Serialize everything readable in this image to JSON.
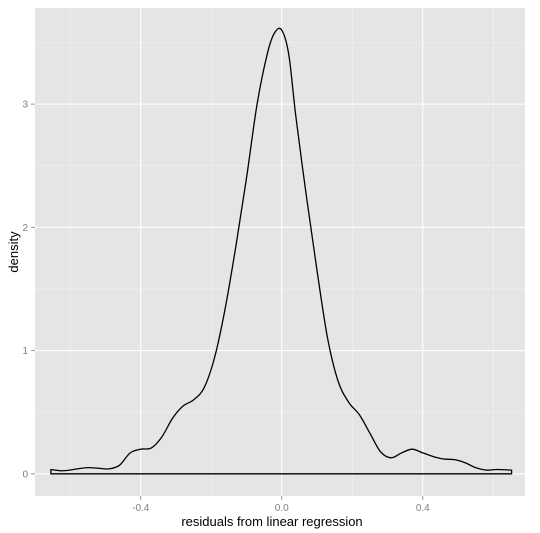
{
  "chart_data": {
    "type": "area",
    "style": "ggplot2 density plot (outlined, unfilled)",
    "xlabel": "residuals from linear regression",
    "ylabel": "density",
    "xlim": [
      -0.7,
      0.69
    ],
    "ylim": [
      -0.18,
      3.78
    ],
    "x_ticks": [
      -0.4,
      0.0,
      0.4
    ],
    "x_tick_labels": [
      "-0.4",
      "0.0",
      "0.4"
    ],
    "y_ticks": [
      0,
      1,
      2,
      3
    ],
    "y_tick_labels": [
      "0",
      "1",
      "2",
      "3"
    ],
    "grid": true,
    "panel_background": "#e5e5e5",
    "grid_color": "#ffffff",
    "line_color": "#000000",
    "series": [
      {
        "x": [
          -0.655,
          -0.62,
          -0.58,
          -0.55,
          -0.52,
          -0.49,
          -0.46,
          -0.43,
          -0.4,
          -0.37,
          -0.34,
          -0.31,
          -0.28,
          -0.25,
          -0.22,
          -0.19,
          -0.16,
          -0.13,
          -0.1,
          -0.07,
          -0.04,
          -0.02,
          0.0,
          0.02,
          0.04,
          0.07,
          0.1,
          0.13,
          0.16,
          0.19,
          0.22,
          0.25,
          0.28,
          0.31,
          0.34,
          0.37,
          0.4,
          0.43,
          0.46,
          0.49,
          0.52,
          0.55,
          0.58,
          0.61,
          0.652
        ],
        "y": [
          0.035,
          0.025,
          0.04,
          0.05,
          0.045,
          0.04,
          0.07,
          0.17,
          0.2,
          0.21,
          0.3,
          0.45,
          0.55,
          0.6,
          0.7,
          0.95,
          1.35,
          1.85,
          2.4,
          3.0,
          3.42,
          3.58,
          3.6,
          3.4,
          2.9,
          2.25,
          1.65,
          1.1,
          0.75,
          0.58,
          0.48,
          0.33,
          0.18,
          0.13,
          0.17,
          0.2,
          0.17,
          0.14,
          0.12,
          0.115,
          0.09,
          0.05,
          0.03,
          0.035,
          0.03
        ]
      }
    ]
  }
}
